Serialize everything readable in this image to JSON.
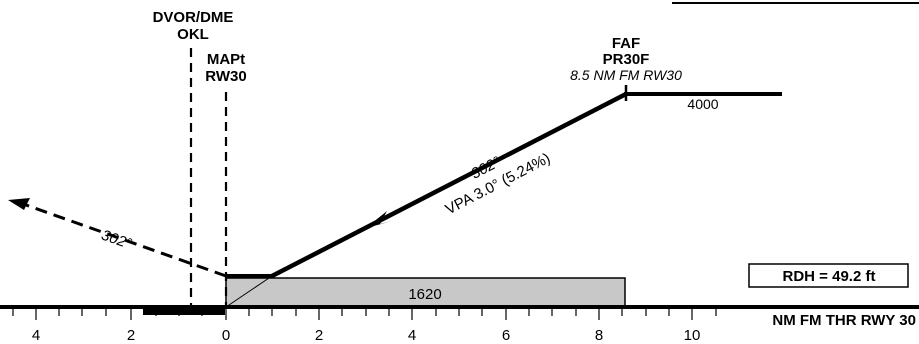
{
  "fixes": {
    "vor": {
      "type": "DVOR/DME",
      "id": "OKL"
    },
    "mapt": {
      "type": "MAPt",
      "id": "RW30"
    },
    "faf": {
      "type": "FAF",
      "id": "PR30F",
      "distance_note": "8.5 NM FM RW30"
    }
  },
  "altitudes": {
    "faf_altitude": "4000",
    "msa_box": "1620"
  },
  "approach": {
    "course": "302°",
    "vpa": "VPA 3.0° (5.24%)"
  },
  "missed_approach": {
    "course": "302°"
  },
  "rdh": "RDH = 49.2 ft",
  "axis": {
    "title": "NM FM THR RWY 30",
    "ticks": [
      "4",
      "2",
      "0",
      "2",
      "4",
      "6",
      "8",
      "10"
    ]
  }
}
